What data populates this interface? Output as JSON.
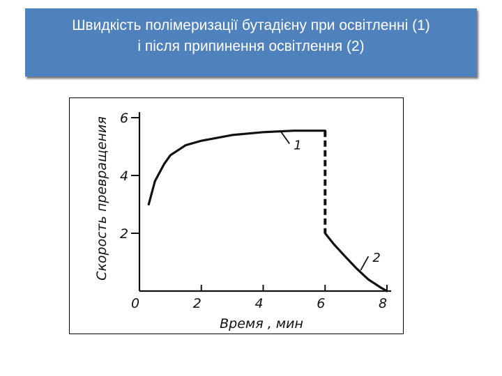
{
  "slide": {
    "title_line1": "Швидкість полімеризації бутадієну при освітленні (1)",
    "title_line2": "і після припинення освітлення (2)"
  },
  "colors": {
    "title_bg": "#4f81bd",
    "title_text": "#ffffff",
    "ink": "#111111"
  },
  "chart_data": {
    "type": "line",
    "title": "",
    "xlabel": "Время , мин",
    "ylabel": "Скорость превращения",
    "xlim": [
      0,
      8
    ],
    "ylim": [
      0,
      6
    ],
    "xticks": [
      "0",
      "2",
      "4",
      "6",
      "8"
    ],
    "yticks": [
      "2",
      "4",
      "6"
    ],
    "grid": false,
    "series": [
      {
        "name": "1",
        "style": "solid",
        "x": [
          0.3,
          0.5,
          0.8,
          1.0,
          1.5,
          2.0,
          2.5,
          3.0,
          4.0,
          5.0,
          6.0
        ],
        "y": [
          3.0,
          3.8,
          4.4,
          4.7,
          5.05,
          5.2,
          5.3,
          5.4,
          5.5,
          5.55,
          5.55
        ]
      },
      {
        "name": "",
        "style": "dashed",
        "x": [
          6.0,
          6.0
        ],
        "y": [
          5.55,
          2.0
        ]
      },
      {
        "name": "2",
        "style": "solid",
        "x": [
          6.0,
          6.3,
          6.6,
          7.0,
          7.4,
          7.8,
          8.0
        ],
        "y": [
          2.0,
          1.6,
          1.25,
          0.8,
          0.4,
          0.12,
          0.0
        ]
      }
    ]
  }
}
